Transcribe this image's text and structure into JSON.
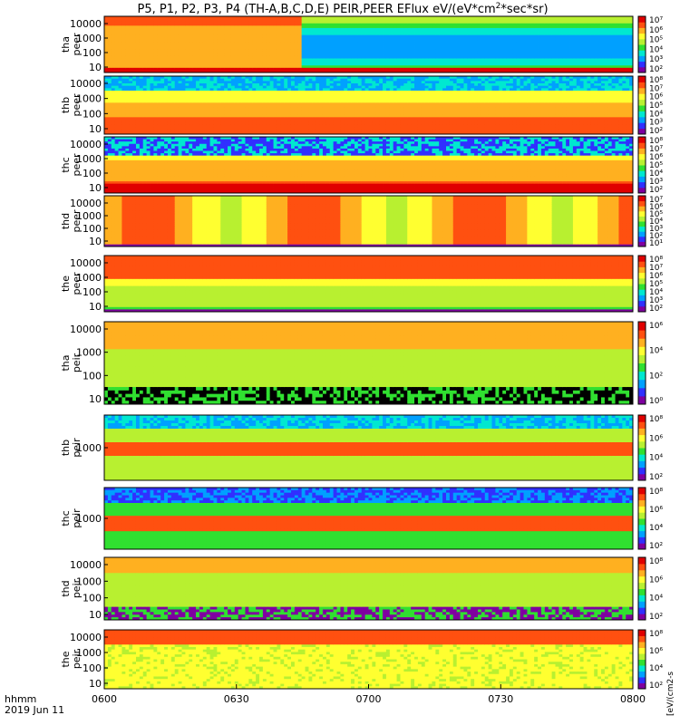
{
  "chart_data": {
    "type": "heatmap",
    "title": "P5, P1, P2, P3, P4 (TH-A,B,C,D,E) PEIR,PEER EFlux eV/(eV*cm2*sec*sr)",
    "title_main": "P5, P1, P2, P3, P4 (TH-A,B,C,D,E) PEIR,PEER EFlux eV/(eV*cm",
    "title_sup": "2",
    "title_end": "*sec*sr)",
    "x_time_range": [
      "0600",
      "0800"
    ],
    "xtick_labels": [
      "0600",
      "0630",
      "0700",
      "0730",
      "0800"
    ],
    "x_label_top": "hhmm",
    "x_label_date": "2019 Jun 11",
    "y_scale": "log",
    "colorbar_scale": "log",
    "colorbar_unit_label": "[eV/(cm2-s",
    "panels": [
      {
        "probe": "tha",
        "instrument": "peer",
        "yticks": [
          "10",
          "100",
          "1000",
          "10000"
        ],
        "cbar_ticks": [
          "10²",
          "10³",
          "10⁴",
          "10⁵",
          "10⁶",
          "10⁷"
        ]
      },
      {
        "probe": "thb",
        "instrument": "peer",
        "yticks": [
          "10",
          "100",
          "1000",
          "10000"
        ],
        "cbar_ticks": [
          "10²",
          "10³",
          "10⁴",
          "10⁵",
          "10⁶",
          "10⁷",
          "10⁸"
        ]
      },
      {
        "probe": "thc",
        "instrument": "peer",
        "yticks": [
          "10",
          "100",
          "1000",
          "10000"
        ],
        "cbar_ticks": [
          "10²",
          "10³",
          "10⁴",
          "10⁵",
          "10⁶",
          "10⁷",
          "10⁸"
        ]
      },
      {
        "probe": "thd",
        "instrument": "peer",
        "yticks": [
          "10",
          "100",
          "1000",
          "10000"
        ],
        "cbar_ticks": [
          "10¹",
          "10²",
          "10³",
          "10⁴",
          "10⁵",
          "10⁶",
          "10⁷"
        ]
      },
      {
        "probe": "the",
        "instrument": "peer",
        "yticks": [
          "10",
          "100",
          "1000",
          "10000"
        ],
        "cbar_ticks": [
          "10²",
          "10³",
          "10⁴",
          "10⁵",
          "10⁶",
          "10⁷",
          "10⁸"
        ]
      },
      {
        "probe": "tha",
        "instrument": "peir",
        "yticks": [
          "10",
          "100",
          "1000",
          "10000"
        ],
        "cbar_ticks": [
          "10⁰",
          "10²",
          "10⁴",
          "10⁶"
        ]
      },
      {
        "probe": "thb",
        "instrument": "peir",
        "yticks": [
          "1000"
        ],
        "cbar_ticks": [
          "10²",
          "10⁴",
          "10⁶",
          "10⁸"
        ]
      },
      {
        "probe": "thc",
        "instrument": "peir",
        "yticks": [
          "1000"
        ],
        "cbar_ticks": [
          "10²",
          "10⁴",
          "10⁶",
          "10⁸"
        ]
      },
      {
        "probe": "thd",
        "instrument": "peir",
        "yticks": [
          "10",
          "100",
          "1000",
          "10000"
        ],
        "cbar_ticks": [
          "10²",
          "10⁴",
          "10⁶",
          "10⁸"
        ]
      },
      {
        "probe": "the",
        "instrument": "peir",
        "yticks": [
          "10",
          "100",
          "1000",
          "10000"
        ],
        "cbar_ticks": [
          "10²",
          "10⁴",
          "10⁶",
          "10⁸"
        ]
      }
    ],
    "colormap": [
      "#7f00a0",
      "#3030ff",
      "#00a0ff",
      "#00e8d0",
      "#30e030",
      "#b8f030",
      "#ffff30",
      "#ffb020",
      "#ff5010",
      "#e00000"
    ]
  }
}
